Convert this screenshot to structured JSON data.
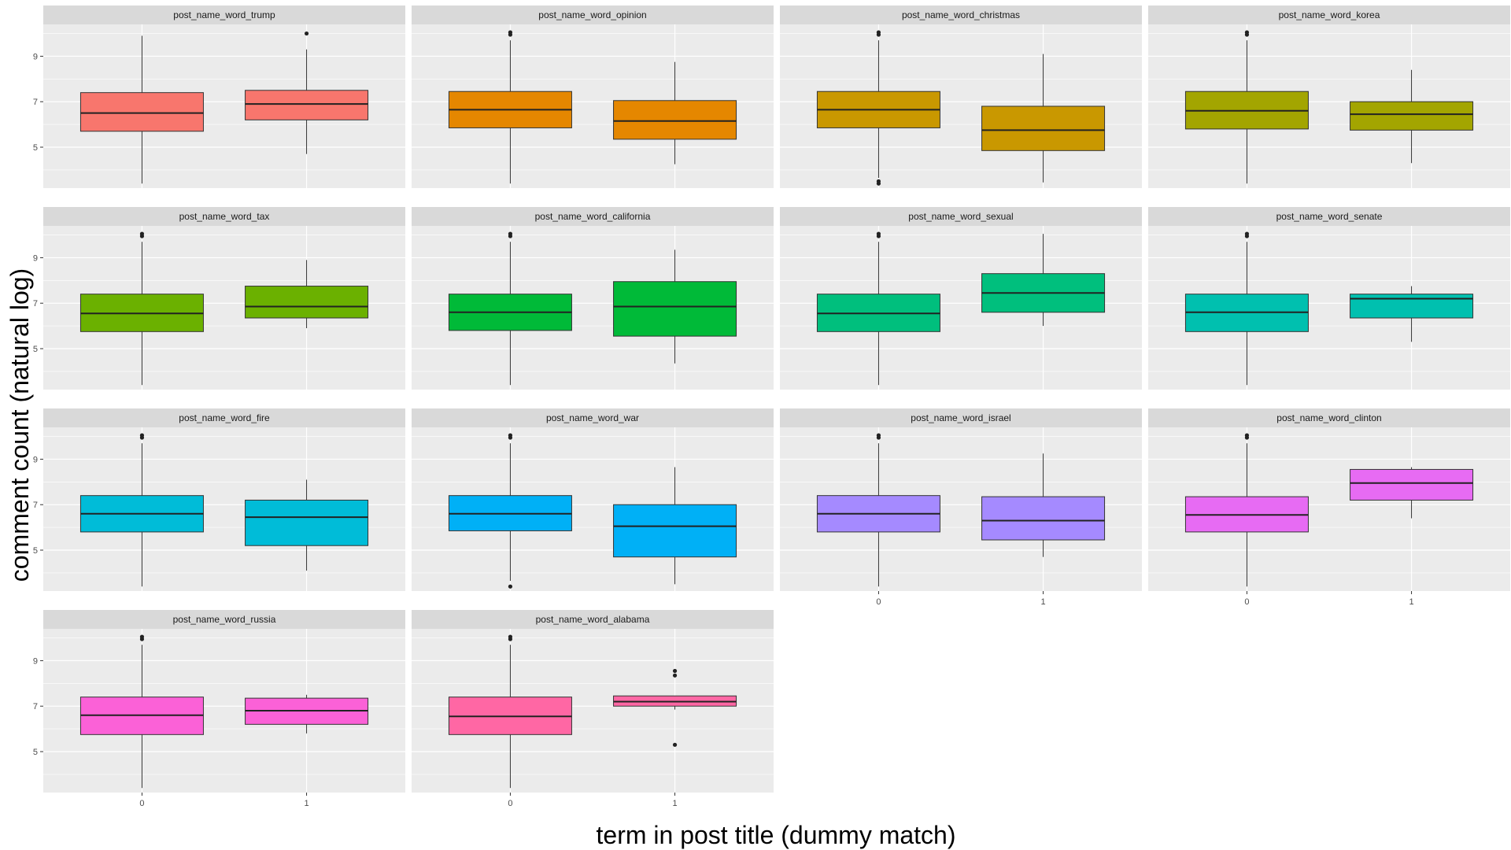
{
  "chart_data": {
    "type": "boxplot",
    "xlabel": "term in post title (dummy match)",
    "ylabel": "comment count (natural log)",
    "x_categories": [
      "0",
      "1"
    ],
    "y_ticks": [
      5,
      7,
      9
    ],
    "ylim": [
      3.2,
      10.4
    ],
    "layout": "facet grid, 4 columns x 4 rows",
    "panel_background": "#EBEBEB",
    "strip_background": "#D9D9D9",
    "panels": [
      {
        "name": "post_name_word_trump",
        "color": "#F8766D",
        "boxes": [
          {
            "x": "0",
            "whisker_low": 3.4,
            "q1": 5.7,
            "median": 6.5,
            "q3": 7.4,
            "whisker_high": 9.9,
            "outliers": []
          },
          {
            "x": "1",
            "whisker_low": 4.7,
            "q1": 6.2,
            "median": 6.9,
            "q3": 7.5,
            "whisker_high": 9.3,
            "outliers": [
              10.0
            ]
          }
        ]
      },
      {
        "name": "post_name_word_opinion",
        "color": "#E58700",
        "boxes": [
          {
            "x": "0",
            "whisker_low": 3.4,
            "q1": 5.85,
            "median": 6.65,
            "q3": 7.45,
            "whisker_high": 9.7,
            "outliers": [
              9.95,
              10.05
            ]
          },
          {
            "x": "1",
            "whisker_low": 4.25,
            "q1": 5.35,
            "median": 6.15,
            "q3": 7.05,
            "whisker_high": 8.75,
            "outliers": []
          }
        ]
      },
      {
        "name": "post_name_word_christmas",
        "color": "#C99800",
        "boxes": [
          {
            "x": "0",
            "whisker_low": 3.65,
            "q1": 5.85,
            "median": 6.65,
            "q3": 7.45,
            "whisker_high": 9.7,
            "outliers": [
              3.4,
              3.5,
              9.95,
              10.05
            ]
          },
          {
            "x": "1",
            "whisker_low": 3.45,
            "q1": 4.85,
            "median": 5.75,
            "q3": 6.8,
            "whisker_high": 9.1,
            "outliers": []
          }
        ]
      },
      {
        "name": "post_name_word_korea",
        "color": "#A3A500",
        "boxes": [
          {
            "x": "0",
            "whisker_low": 3.4,
            "q1": 5.8,
            "median": 6.6,
            "q3": 7.45,
            "whisker_high": 9.7,
            "outliers": [
              9.95,
              10.05
            ]
          },
          {
            "x": "1",
            "whisker_low": 4.3,
            "q1": 5.75,
            "median": 6.45,
            "q3": 7.0,
            "whisker_high": 8.4,
            "outliers": []
          }
        ]
      },
      {
        "name": "post_name_word_tax",
        "color": "#6BB100",
        "boxes": [
          {
            "x": "0",
            "whisker_low": 3.4,
            "q1": 5.75,
            "median": 6.55,
            "q3": 7.4,
            "whisker_high": 9.7,
            "outliers": [
              9.95,
              10.05
            ]
          },
          {
            "x": "1",
            "whisker_low": 5.9,
            "q1": 6.35,
            "median": 6.85,
            "q3": 7.75,
            "whisker_high": 8.9,
            "outliers": []
          }
        ]
      },
      {
        "name": "post_name_word_california",
        "color": "#00BA38",
        "boxes": [
          {
            "x": "0",
            "whisker_low": 3.4,
            "q1": 5.8,
            "median": 6.6,
            "q3": 7.4,
            "whisker_high": 9.7,
            "outliers": [
              9.95,
              10.05
            ]
          },
          {
            "x": "1",
            "whisker_low": 4.35,
            "q1": 5.55,
            "median": 6.85,
            "q3": 7.95,
            "whisker_high": 9.35,
            "outliers": []
          }
        ]
      },
      {
        "name": "post_name_word_sexual",
        "color": "#00BF7D",
        "boxes": [
          {
            "x": "0",
            "whisker_low": 3.4,
            "q1": 5.75,
            "median": 6.55,
            "q3": 7.4,
            "whisker_high": 9.7,
            "outliers": [
              9.95,
              10.05
            ]
          },
          {
            "x": "1",
            "whisker_low": 6.0,
            "q1": 6.6,
            "median": 7.45,
            "q3": 8.3,
            "whisker_high": 10.05,
            "outliers": []
          }
        ]
      },
      {
        "name": "post_name_word_senate",
        "color": "#00C0AF",
        "boxes": [
          {
            "x": "0",
            "whisker_low": 3.4,
            "q1": 5.75,
            "median": 6.6,
            "q3": 7.4,
            "whisker_high": 9.7,
            "outliers": [
              9.95,
              10.05
            ]
          },
          {
            "x": "1",
            "whisker_low": 5.3,
            "q1": 6.35,
            "median": 7.2,
            "q3": 7.4,
            "whisker_high": 7.75,
            "outliers": []
          }
        ]
      },
      {
        "name": "post_name_word_fire",
        "color": "#00BCD8",
        "boxes": [
          {
            "x": "0",
            "whisker_low": 3.4,
            "q1": 5.8,
            "median": 6.6,
            "q3": 7.4,
            "whisker_high": 9.7,
            "outliers": [
              9.95,
              10.05
            ]
          },
          {
            "x": "1",
            "whisker_low": 4.1,
            "q1": 5.2,
            "median": 6.45,
            "q3": 7.2,
            "whisker_high": 8.1,
            "outliers": []
          }
        ]
      },
      {
        "name": "post_name_word_war",
        "color": "#00B0F6",
        "boxes": [
          {
            "x": "0",
            "whisker_low": 3.65,
            "q1": 5.85,
            "median": 6.6,
            "q3": 7.4,
            "whisker_high": 9.7,
            "outliers": [
              3.4,
              9.95,
              10.05
            ]
          },
          {
            "x": "1",
            "whisker_low": 3.5,
            "q1": 4.7,
            "median": 6.05,
            "q3": 7.0,
            "whisker_high": 8.65,
            "outliers": []
          }
        ]
      },
      {
        "name": "post_name_word_israel",
        "color": "#A58AFF",
        "boxes": [
          {
            "x": "0",
            "whisker_low": 3.4,
            "q1": 5.8,
            "median": 6.6,
            "q3": 7.4,
            "whisker_high": 9.7,
            "outliers": [
              9.95,
              10.05
            ]
          },
          {
            "x": "1",
            "whisker_low": 4.7,
            "q1": 5.45,
            "median": 6.3,
            "q3": 7.35,
            "whisker_high": 9.25,
            "outliers": []
          }
        ]
      },
      {
        "name": "post_name_word_clinton",
        "color": "#E76BF3",
        "boxes": [
          {
            "x": "0",
            "whisker_low": 3.4,
            "q1": 5.8,
            "median": 6.55,
            "q3": 7.35,
            "whisker_high": 9.7,
            "outliers": [
              9.95,
              10.05
            ]
          },
          {
            "x": "1",
            "whisker_low": 6.4,
            "q1": 7.2,
            "median": 7.95,
            "q3": 8.55,
            "whisker_high": 8.65,
            "outliers": []
          }
        ]
      },
      {
        "name": "post_name_word_russia",
        "color": "#FB61D7",
        "boxes": [
          {
            "x": "0",
            "whisker_low": 3.4,
            "q1": 5.75,
            "median": 6.6,
            "q3": 7.4,
            "whisker_high": 9.7,
            "outliers": [
              9.95,
              10.05
            ]
          },
          {
            "x": "1",
            "whisker_low": 5.8,
            "q1": 6.2,
            "median": 6.8,
            "q3": 7.35,
            "whisker_high": 7.5,
            "outliers": []
          }
        ]
      },
      {
        "name": "post_name_word_alabama",
        "color": "#FF67A4",
        "boxes": [
          {
            "x": "0",
            "whisker_low": 3.4,
            "q1": 5.75,
            "median": 6.55,
            "q3": 7.4,
            "whisker_high": 9.7,
            "outliers": [
              9.95,
              10.05
            ]
          },
          {
            "x": "1",
            "whisker_low": 6.85,
            "q1": 7.0,
            "median": 7.2,
            "q3": 7.45,
            "whisker_high": 7.45,
            "outliers": [
              5.3,
              8.35,
              8.55
            ]
          }
        ]
      }
    ]
  }
}
